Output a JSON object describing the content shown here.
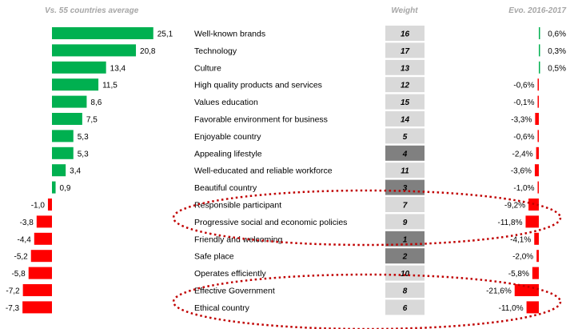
{
  "chart_data": {
    "type": "bar",
    "headers": {
      "left": "Vs. 55 countries average",
      "weight": "Weight",
      "evo": "Evo. 2016-2017"
    },
    "categories": [
      "Well-known brands",
      "Technology",
      "Culture",
      "High quality products and services",
      "Values education",
      "Favorable environment for business",
      "Enjoyable country",
      "Appealing lifestyle",
      "Well-educated and reliable workforce",
      "Beautiful country",
      "Responsible participant",
      "Progressive social and economic policies",
      "Friendly and welcoming",
      "Safe place",
      "Operates efficiently",
      "Effective Government",
      "Ethical country"
    ],
    "series": [
      {
        "values": [
          25.1,
          20.8,
          13.4,
          11.5,
          8.6,
          7.5,
          5.3,
          5.3,
          3.4,
          0.9,
          -1.0,
          -3.8,
          -4.4,
          -5.2,
          -5.8,
          -7.2,
          -7.3
        ],
        "labels": [
          "25,1",
          "20,8",
          "13,4",
          "11,5",
          "8,6",
          "7,5",
          "5,3",
          "5,3",
          "3,4",
          "0,9",
          "-1,0",
          "-3,8",
          "-4,4",
          "-5,2",
          "-5,8",
          "-7,2",
          "-7,3"
        ]
      },
      {
        "values": [
          16,
          17,
          13,
          12,
          15,
          14,
          5,
          4,
          11,
          3,
          7,
          9,
          1,
          2,
          10,
          8,
          6
        ],
        "labels": [
          "16",
          "17",
          "13",
          "12",
          "15",
          "14",
          "5",
          "4",
          "11",
          "3",
          "7",
          "9",
          "1",
          "2",
          "10",
          "8",
          "6"
        ],
        "highlighted": [
          false,
          false,
          false,
          false,
          false,
          false,
          false,
          true,
          false,
          true,
          false,
          false,
          true,
          true,
          false,
          false,
          false
        ]
      },
      {
        "values": [
          0.6,
          0.3,
          0.5,
          -0.6,
          -0.1,
          -3.3,
          -0.6,
          -2.4,
          -3.6,
          -1.0,
          -9.2,
          -11.8,
          -4.1,
          -2.0,
          -5.8,
          -21.6,
          -11.0
        ],
        "labels": [
          "0,6%",
          "0,3%",
          "0,5%",
          "-0,6%",
          "-0,1%",
          "-3,3%",
          "-0,6%",
          "-2,4%",
          "-3,6%",
          "-1,0%",
          "-9,2%",
          "-11,8%",
          "-4,1%",
          "-2,0%",
          "-5,8%",
          "-21,6%",
          "-11,0%"
        ]
      }
    ],
    "highlight_groups": [
      [
        "Responsible participant",
        "Progressive social and economic policies"
      ],
      [
        "Effective Government",
        "Ethical country"
      ]
    ],
    "colors": {
      "positive": "#00b050",
      "negative": "#ff0000",
      "weight_normal": "#d9d9d9",
      "weight_highlight": "#808080",
      "header": "#a6a6a6",
      "ellipse": "#c00000"
    },
    "legend": "none",
    "grid": false
  }
}
